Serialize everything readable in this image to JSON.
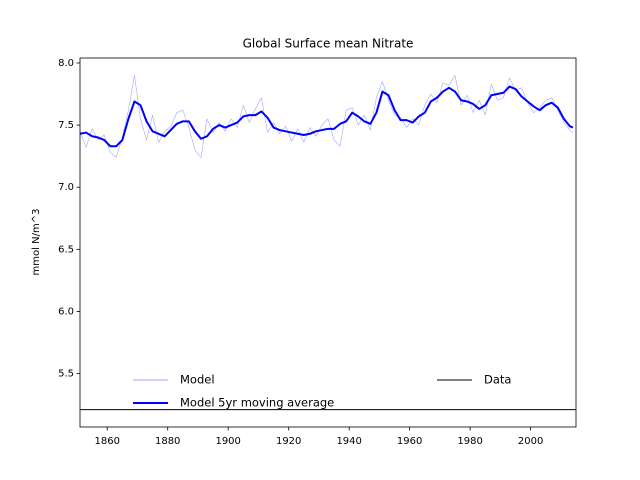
{
  "chart_data": {
    "type": "line",
    "title": "Global Surface mean Nitrate",
    "y_label": "mmol N/m^3",
    "xlim": [
      1851,
      2015
    ],
    "ylim": [
      5.07,
      8.04
    ],
    "xticks": [
      1860,
      1880,
      1900,
      1920,
      1940,
      1960,
      1980,
      2000
    ],
    "yticks": [
      5.5,
      {
        "value": 6,
        "label": "6.0"
      },
      6.5,
      {
        "value": 7,
        "label": "7.0"
      },
      7.5,
      {
        "value": 8,
        "label": "8.0"
      }
    ],
    "x": [
      1851,
      1853,
      1855,
      1857,
      1859,
      1861,
      1863,
      1865,
      1867,
      1869,
      1871,
      1873,
      1875,
      1877,
      1879,
      1881,
      1883,
      1885,
      1887,
      1889,
      1891,
      1893,
      1895,
      1897,
      1899,
      1901,
      1903,
      1905,
      1907,
      1909,
      1911,
      1913,
      1915,
      1917,
      1919,
      1921,
      1923,
      1925,
      1927,
      1929,
      1931,
      1933,
      1935,
      1937,
      1939,
      1941,
      1943,
      1945,
      1947,
      1949,
      1951,
      1953,
      1955,
      1957,
      1959,
      1961,
      1963,
      1965,
      1967,
      1969,
      1971,
      1973,
      1975,
      1977,
      1979,
      1981,
      1983,
      1985,
      1987,
      1989,
      1991,
      1993,
      1995,
      1997,
      1999,
      2001,
      2003,
      2005,
      2007,
      2009,
      2011,
      2013,
      2014
    ],
    "series": [
      {
        "name": "Model",
        "color": "#0000ff",
        "alpha": 0.35,
        "linewidth": 0.6,
        "values": [
          7.45,
          7.32,
          7.47,
          7.38,
          7.42,
          7.28,
          7.24,
          7.4,
          7.62,
          7.9,
          7.55,
          7.38,
          7.58,
          7.36,
          7.45,
          7.49,
          7.6,
          7.62,
          7.48,
          7.3,
          7.24,
          7.55,
          7.44,
          7.52,
          7.45,
          7.55,
          7.48,
          7.66,
          7.52,
          7.63,
          7.72,
          7.44,
          7.52,
          7.43,
          7.49,
          7.37,
          7.47,
          7.36,
          7.48,
          7.41,
          7.5,
          7.55,
          7.38,
          7.33,
          7.62,
          7.64,
          7.5,
          7.58,
          7.46,
          7.72,
          7.85,
          7.7,
          7.58,
          7.56,
          7.48,
          7.55,
          7.5,
          7.66,
          7.75,
          7.68,
          7.84,
          7.82,
          7.9,
          7.66,
          7.74,
          7.6,
          7.7,
          7.58,
          7.83,
          7.7,
          7.72,
          7.88,
          7.78,
          7.8,
          7.68,
          7.6,
          7.64,
          7.7,
          7.72,
          7.62,
          7.52,
          7.46,
          7.44
        ]
      },
      {
        "name": "Model 5yr moving average",
        "color": "#0000ff",
        "alpha": 1,
        "linewidth": 2,
        "values": [
          7.43,
          7.44,
          7.41,
          7.4,
          7.38,
          7.33,
          7.33,
          7.38,
          7.55,
          7.69,
          7.66,
          7.53,
          7.45,
          7.43,
          7.41,
          7.46,
          7.51,
          7.53,
          7.53,
          7.45,
          7.39,
          7.41,
          7.47,
          7.5,
          7.48,
          7.5,
          7.52,
          7.57,
          7.58,
          7.58,
          7.61,
          7.56,
          7.48,
          7.46,
          7.45,
          7.44,
          7.43,
          7.42,
          7.43,
          7.45,
          7.46,
          7.47,
          7.47,
          7.51,
          7.53,
          7.6,
          7.57,
          7.53,
          7.51,
          7.6,
          7.77,
          7.74,
          7.62,
          7.54,
          7.54,
          7.52,
          7.57,
          7.6,
          7.69,
          7.72,
          7.77,
          7.8,
          7.77,
          7.7,
          7.69,
          7.67,
          7.63,
          7.66,
          7.74,
          7.75,
          7.76,
          7.81,
          7.79,
          7.73,
          7.69,
          7.65,
          7.62,
          7.66,
          7.68,
          7.64,
          7.55,
          7.49,
          7.48
        ]
      },
      {
        "name": "Data",
        "color": "#000000",
        "alpha": 1,
        "linewidth": 1,
        "x": [
          1851,
          2015
        ],
        "values": [
          5.21,
          5.21
        ]
      }
    ]
  }
}
